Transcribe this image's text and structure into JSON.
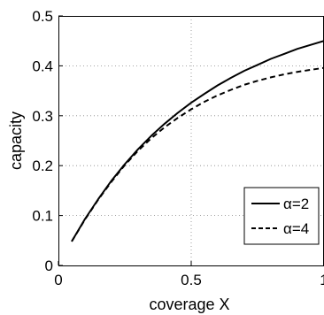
{
  "chart_data": {
    "type": "line",
    "title": "",
    "xlabel": "coverage X",
    "ylabel": "capacity",
    "xlim": [
      0,
      1
    ],
    "ylim": [
      0,
      0.5
    ],
    "xticks": [
      {
        "value": 0,
        "label": "0"
      },
      {
        "value": 0.5,
        "label": "0.5"
      },
      {
        "value": 1,
        "label": "1"
      }
    ],
    "yticks": [
      {
        "value": 0,
        "label": "0"
      },
      {
        "value": 0.1,
        "label": "0.1"
      },
      {
        "value": 0.2,
        "label": "0.2"
      },
      {
        "value": 0.3,
        "label": "0.3"
      },
      {
        "value": 0.4,
        "label": "0.4"
      },
      {
        "value": 0.5,
        "label": "0.5"
      }
    ],
    "grid": "dotted",
    "legend_position": "bottom-right",
    "series": [
      {
        "name": "α=2",
        "style": "solid",
        "color": "#000000",
        "x": [
          0.05,
          0.1,
          0.15,
          0.2,
          0.25,
          0.3,
          0.35,
          0.4,
          0.45,
          0.5,
          0.55,
          0.6,
          0.65,
          0.7,
          0.75,
          0.8,
          0.85,
          0.9,
          0.95,
          1.0
        ],
        "y": [
          0.048,
          0.093,
          0.133,
          0.17,
          0.203,
          0.233,
          0.26,
          0.284,
          0.306,
          0.326,
          0.344,
          0.361,
          0.376,
          0.39,
          0.402,
          0.414,
          0.424,
          0.434,
          0.442,
          0.45
        ]
      },
      {
        "name": "α=4",
        "style": "dashed",
        "color": "#000000",
        "x": [
          0.05,
          0.1,
          0.15,
          0.2,
          0.25,
          0.3,
          0.35,
          0.4,
          0.45,
          0.5,
          0.55,
          0.6,
          0.65,
          0.7,
          0.75,
          0.8,
          0.85,
          0.9,
          0.95,
          1.0
        ],
        "y": [
          0.048,
          0.092,
          0.132,
          0.168,
          0.201,
          0.23,
          0.255,
          0.277,
          0.296,
          0.313,
          0.328,
          0.341,
          0.352,
          0.362,
          0.37,
          0.377,
          0.383,
          0.388,
          0.392,
          0.396
        ]
      }
    ]
  }
}
